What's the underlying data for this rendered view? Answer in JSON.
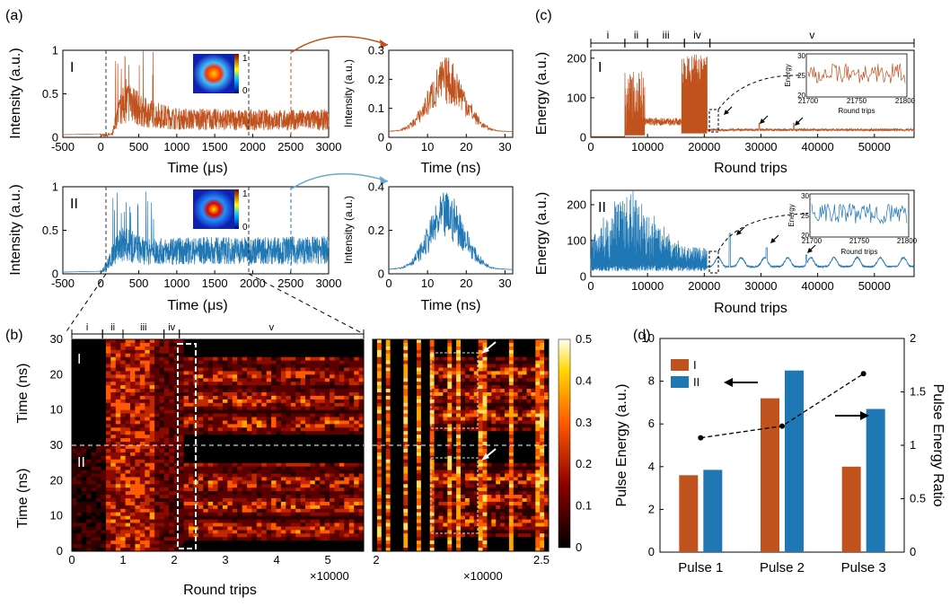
{
  "panel_labels": {
    "a": "(a)",
    "b": "(b)",
    "c": "(c)",
    "d": "(d)"
  },
  "chart_data": [
    {
      "id": "a-I",
      "type": "line",
      "panel": "(a)",
      "tag": "I",
      "color": "#c0521e",
      "xlabel": "Time (μs)",
      "ylabel": "Intensity (a.u.)",
      "xlim": [
        -500,
        3000
      ],
      "ylim": [
        0,
        1
      ],
      "xticks": [
        -500,
        0,
        500,
        1000,
        1500,
        2000,
        2500,
        3000
      ],
      "yticks": [
        0,
        0.5,
        1
      ],
      "profile": [
        [
          -500,
          0.03
        ],
        [
          0,
          0.04
        ],
        [
          150,
          0.05
        ],
        [
          200,
          0.35
        ],
        [
          300,
          0.6
        ],
        [
          400,
          0.7
        ],
        [
          500,
          0.5
        ],
        [
          600,
          0.45
        ],
        [
          700,
          0.42
        ],
        [
          1000,
          0.34
        ],
        [
          2000,
          0.32
        ],
        [
          3000,
          0.32
        ]
      ],
      "inset_colorbar": [
        "0",
        "1"
      ]
    },
    {
      "id": "a-I-zoom",
      "type": "line",
      "color": "#c0521e",
      "xlabel": "Time (ns)",
      "ylabel": "Intensity (a.u.)",
      "xlim": [
        0,
        32
      ],
      "ylim": [
        0,
        0.3
      ],
      "xticks": [
        0,
        10,
        20,
        30
      ],
      "yticks": [
        0,
        0.1,
        0.2,
        0.3
      ]
    },
    {
      "id": "a-II",
      "type": "line",
      "tag": "II",
      "color": "#1f77b4",
      "xlabel": "Time (μs)",
      "ylabel": "Intensity (a.u.)",
      "xlim": [
        -500,
        3000
      ],
      "ylim": [
        0,
        1
      ],
      "xticks": [
        -500,
        0,
        500,
        1000,
        1500,
        2000,
        2500,
        3000
      ],
      "yticks": [
        0,
        0.5,
        1
      ],
      "profile": [
        [
          -500,
          0.02
        ],
        [
          0,
          0.03
        ],
        [
          100,
          0.2
        ],
        [
          200,
          0.45
        ],
        [
          300,
          0.55
        ],
        [
          600,
          0.4
        ],
        [
          1000,
          0.42
        ],
        [
          2000,
          0.43
        ],
        [
          3000,
          0.43
        ]
      ],
      "inset_colorbar": [
        "1",
        "0"
      ]
    },
    {
      "id": "a-II-zoom",
      "type": "line",
      "color": "#1f77b4",
      "xlabel": "Time (ns)",
      "ylabel": "Intensity (a.u.)",
      "xlim": [
        0,
        32
      ],
      "ylim": [
        0,
        0.4
      ],
      "xticks": [
        0,
        10,
        20,
        30
      ],
      "yticks": [
        0,
        0.2,
        0.4
      ]
    },
    {
      "id": "b",
      "type": "heatmap",
      "panel": "(b)",
      "tags": [
        "I",
        "II"
      ],
      "xlabel": "Round trips",
      "ylabel": "Time (ns)",
      "x_multiplier": "×10000",
      "xticks": [
        "0",
        "1",
        "2",
        "3",
        "4",
        "5"
      ],
      "yticks": [
        "0",
        "10",
        "20",
        "30"
      ],
      "zoom_xticks": [
        "2",
        "2.5"
      ],
      "stages": [
        "i",
        "ii",
        "iii",
        "iv",
        "v"
      ],
      "colorbar_ticks": [
        "0",
        "0.1",
        "0.2",
        "0.3",
        "0.4",
        "0.5"
      ]
    },
    {
      "id": "c-I",
      "type": "line",
      "panel": "(c)",
      "tag": "I",
      "color": "#c0521e",
      "xlabel": "Round trips",
      "ylabel": "Energy (a.u.)",
      "xlim": [
        0,
        57000
      ],
      "ylim": [
        0,
        220
      ],
      "xticks": [
        0,
        10000,
        20000,
        30000,
        40000,
        50000
      ],
      "yticks": [
        0,
        100,
        200
      ],
      "stages": [
        "i",
        "ii",
        "iii",
        "iv",
        "v"
      ],
      "inset": {
        "xlabel": "Round trips",
        "ylabel": "Energy",
        "xticks": [
          21700,
          21750,
          21800
        ],
        "yticks": [
          20,
          25,
          30
        ]
      }
    },
    {
      "id": "c-II",
      "type": "line",
      "tag": "II",
      "color": "#1f77b4",
      "xlabel": "Round trips",
      "ylabel": "Energy (a.u.)",
      "xlim": [
        0,
        57000
      ],
      "ylim": [
        0,
        240
      ],
      "xticks": [
        0,
        10000,
        20000,
        30000,
        40000,
        50000
      ],
      "yticks": [
        0,
        100,
        200
      ],
      "inset": {
        "xlabel": "Round trips",
        "ylabel": "Energy",
        "xticks": [
          21700,
          21750,
          21800
        ],
        "yticks": [
          20,
          25,
          30
        ]
      }
    },
    {
      "id": "d",
      "type": "bar",
      "panel": "(d)",
      "categories": [
        "Pulse 1",
        "Pulse 2",
        "Pulse 3"
      ],
      "series": [
        {
          "name": "I",
          "color": "#c0521e",
          "values": [
            3.6,
            7.2,
            4.0
          ]
        },
        {
          "name": "II",
          "color": "#1f77b4",
          "values": [
            3.85,
            8.5,
            6.7
          ]
        }
      ],
      "ratio": [
        1.07,
        1.18,
        1.67
      ],
      "ylabel": "Pulse Energy (a.u.)",
      "y2label": "Pulse Energy Ratio",
      "ylim": [
        0,
        10
      ],
      "y2lim": [
        0,
        2
      ],
      "yticks": [
        0,
        2,
        4,
        6,
        8,
        10
      ],
      "y2ticks": [
        "0",
        "0.5",
        "1",
        "1.5",
        "2"
      ]
    }
  ]
}
